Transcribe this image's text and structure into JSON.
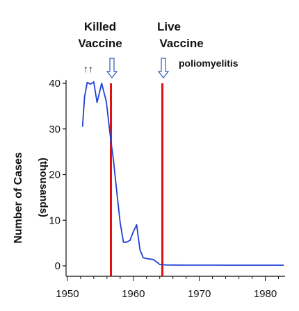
{
  "chart_data": {
    "type": "line",
    "title": "",
    "xlabel": "",
    "ylabel": "Number of Cases",
    "ylabel_sub": "(thousands)",
    "xlim": [
      1949.8,
      1983
    ],
    "ylim": [
      0,
      40
    ],
    "xticks": [
      1950,
      1960,
      1970,
      1980
    ],
    "xtick_labels": [
      "1950",
      "1960",
      "1970",
      "1980"
    ],
    "yticks": [
      0,
      10,
      20,
      30,
      40
    ],
    "ytick_labels": [
      "0",
      "10",
      "20",
      "30",
      "40"
    ],
    "grid": false,
    "series": [
      {
        "color": "#1f3fd6",
        "x": [
          1952.3,
          1952.6,
          1953.0,
          1953.5,
          1954.0,
          1954.5,
          1955.2,
          1955.9,
          1956.5,
          1957.0,
          1957.5,
          1958.0,
          1958.5,
          1959.0,
          1959.5,
          1960.0,
          1960.5,
          1961.0,
          1961.5,
          1962.0,
          1963.0,
          1963.6,
          1964.0,
          1964.5,
          1965.0,
          1966,
          1968,
          1970,
          1972,
          1974,
          1976,
          1978,
          1980,
          1982.8
        ],
        "y": [
          30.5,
          37.0,
          40.2,
          39.8,
          40.3,
          35.8,
          40.0,
          36.0,
          28.5,
          23.0,
          16.0,
          9.5,
          5.2,
          5.2,
          5.6,
          7.5,
          9.0,
          3.5,
          1.8,
          1.6,
          1.4,
          0.8,
          0.3,
          0.25,
          0.2,
          0.18,
          0.17,
          0.16,
          0.16,
          0.15,
          0.15,
          0.15,
          0.15,
          0.15
        ]
      }
    ],
    "markers": [
      {
        "x": 1956.6,
        "label": "Killed Vaccine",
        "color": "#e01010"
      },
      {
        "x": 1964.4,
        "label": "Live Vaccine",
        "color": "#e01010"
      }
    ],
    "annotations": {
      "killed_line1": "Killed",
      "killed_line2": "Vaccine",
      "live_line1": "Live",
      "live_line2": "Vaccine",
      "polio": "poliomyelitis",
      "double_arrow": "↑↑"
    }
  }
}
